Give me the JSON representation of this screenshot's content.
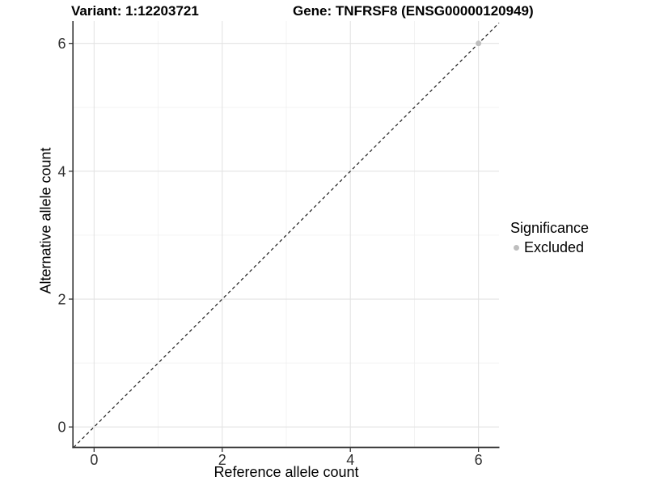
{
  "colors": {
    "point": "#bebebe",
    "grid_major": "#e3e3e3",
    "grid_minor": "#f0f0f0",
    "axis_line": "#333333",
    "tick_text": "#303030",
    "text": "#000000",
    "identity_line": "#1a1a1a"
  },
  "chart_data": {
    "type": "scatter",
    "titles": {
      "variant": "Variant: 1:12203721",
      "gene": "Gene: TNFRSF8 (ENSG00000120949)"
    },
    "xlabel": "Reference allele count",
    "ylabel": "Alternative allele count",
    "xlim": [
      -0.32,
      6.32
    ],
    "ylim": [
      -0.32,
      6.35
    ],
    "x_ticks": [
      0,
      2,
      4,
      6
    ],
    "y_ticks": [
      0,
      2,
      4,
      6
    ],
    "x_minor_ticks": [
      1,
      3,
      5
    ],
    "y_minor_ticks": [
      1,
      3,
      5
    ],
    "grid": true,
    "identity_line": {
      "style": "dashed",
      "from": -0.32,
      "to": 6.32
    },
    "series": [
      {
        "name": "Excluded",
        "color": "#bebebe",
        "points": [
          {
            "x": 6,
            "y": 6
          }
        ]
      }
    ],
    "legend": {
      "title": "Significance",
      "position": "right",
      "items": [
        {
          "label": "Excluded",
          "color": "#bebebe"
        }
      ]
    }
  }
}
